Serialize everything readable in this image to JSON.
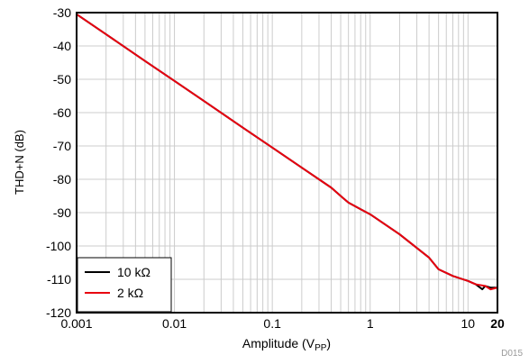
{
  "chart_data": {
    "type": "line",
    "title": "",
    "xlabel": "Amplitude (V",
    "xlabel_sub": "PP",
    "xlabel_close": ")",
    "ylabel": "THD+N (dB)",
    "figure_id": "D015",
    "x_scale": "log",
    "xlim": [
      0.001,
      20
    ],
    "ylim": [
      -120,
      -30
    ],
    "x_ticks": [
      {
        "value": 0.001,
        "label": "0.001"
      },
      {
        "value": 0.01,
        "label": "0.01"
      },
      {
        "value": 0.1,
        "label": "0.1"
      },
      {
        "value": 1,
        "label": "1"
      },
      {
        "value": 10,
        "label": "10"
      },
      {
        "value": 20,
        "label": "20"
      }
    ],
    "y_ticks": [
      {
        "value": -30,
        "label": "-30"
      },
      {
        "value": -40,
        "label": "-40"
      },
      {
        "value": -50,
        "label": "-50"
      },
      {
        "value": -60,
        "label": "-60"
      },
      {
        "value": -70,
        "label": "-70"
      },
      {
        "value": -80,
        "label": "-80"
      },
      {
        "value": -90,
        "label": "-90"
      },
      {
        "value": -100,
        "label": "-100"
      },
      {
        "value": -110,
        "label": "-110"
      },
      {
        "value": -120,
        "label": "-120"
      }
    ],
    "grid": true,
    "legend_position": "bottom-left",
    "series": [
      {
        "name": "10 kΩ",
        "color": "#000000",
        "points": [
          [
            0.001,
            -30.5
          ],
          [
            0.002,
            -36.5
          ],
          [
            0.005,
            -44.5
          ],
          [
            0.01,
            -50.5
          ],
          [
            0.02,
            -56.5
          ],
          [
            0.05,
            -64.5
          ],
          [
            0.1,
            -70.5
          ],
          [
            0.2,
            -76.5
          ],
          [
            0.4,
            -82.5
          ],
          [
            0.5,
            -85
          ],
          [
            0.6,
            -87
          ],
          [
            0.8,
            -89
          ],
          [
            1,
            -90.5
          ],
          [
            2,
            -96.5
          ],
          [
            4,
            -103.5
          ],
          [
            5,
            -107
          ],
          [
            7,
            -109
          ],
          [
            10,
            -110.5
          ],
          [
            12,
            -111.5
          ],
          [
            14,
            -113
          ],
          [
            15,
            -112
          ],
          [
            17,
            -112.5
          ],
          [
            20,
            -112.5
          ]
        ]
      },
      {
        "name": "2 kΩ",
        "color": "#e8000f",
        "points": [
          [
            0.001,
            -30.5
          ],
          [
            0.002,
            -36.5
          ],
          [
            0.005,
            -44.5
          ],
          [
            0.01,
            -50.5
          ],
          [
            0.02,
            -56.5
          ],
          [
            0.05,
            -64.5
          ],
          [
            0.1,
            -70.5
          ],
          [
            0.2,
            -76.5
          ],
          [
            0.4,
            -82.5
          ],
          [
            0.5,
            -85
          ],
          [
            0.6,
            -87
          ],
          [
            0.8,
            -89
          ],
          [
            1,
            -90.5
          ],
          [
            2,
            -96.5
          ],
          [
            4,
            -103.5
          ],
          [
            5,
            -107
          ],
          [
            7,
            -109
          ],
          [
            10,
            -110.5
          ],
          [
            12,
            -111.5
          ],
          [
            15,
            -112
          ],
          [
            17,
            -113
          ],
          [
            20,
            -112.5
          ]
        ]
      }
    ]
  }
}
